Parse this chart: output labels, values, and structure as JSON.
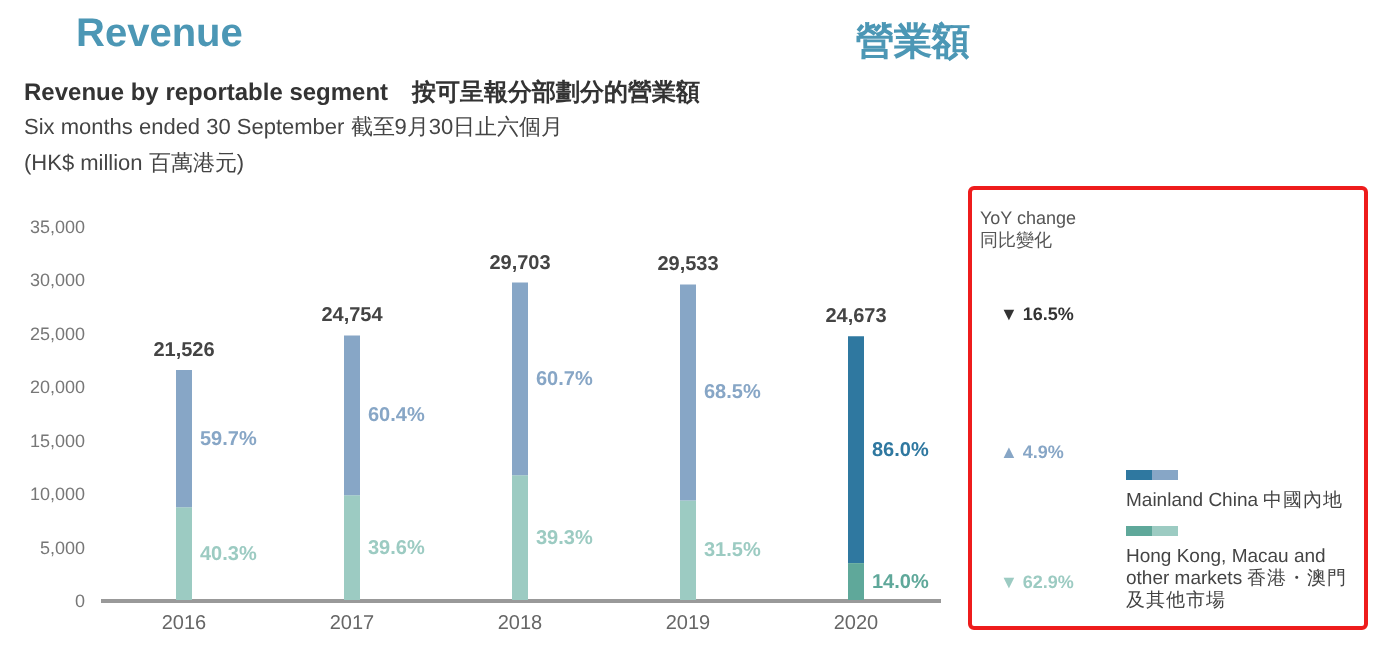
{
  "chart_data": {
    "type": "bar",
    "title": "Revenue",
    "subtitle": "Revenue by reportable segment　按可呈報分部劃分的營業額",
    "annotations": [
      "營業額",
      "Six months ended 30 September 截至9月30日止六個月",
      "(HK$ million 百萬港元)",
      "YoY change\n同比變化",
      "▼ 16.5%",
      "▲ 4.9%",
      "▼ 62.9%",
      {
        "text": "40.3%",
        "x": "2016",
        "y": 4340
      },
      {
        "text": "59.7%",
        "x": "2016",
        "y": 15100
      },
      {
        "text": "39.6%",
        "x": "2017",
        "y": 4900
      },
      {
        "text": "60.4%",
        "x": "2017",
        "y": 17280
      },
      {
        "text": "39.3%",
        "x": "2018",
        "y": 5840
      },
      {
        "text": "60.7%",
        "x": "2018",
        "y": 20690
      },
      {
        "text": "31.5%",
        "x": "2019",
        "y": 4650
      },
      {
        "text": "68.5%",
        "x": "2019",
        "y": 19420
      },
      {
        "text": "14.0%",
        "x": "2020",
        "y": 1730
      },
      {
        "text": "86.0%",
        "x": "2020",
        "y": 14060
      }
    ],
    "categories": [
      "2016",
      "2017",
      "2018",
      "2019",
      "2020"
    ],
    "stacked": true,
    "series": [
      {
        "name": "Hong Kong, Macau and other markets 香港・澳門及其他市場",
        "color": "#9ccbc2",
        "colors": [
          "#9ccbc2",
          "#9ccbc2",
          "#9ccbc2",
          "#9ccbc2",
          "#5fa89a"
        ],
        "values": [
          8675,
          9803,
          11673,
          9303,
          3454
        ]
      },
      {
        "name": "Mainland China 中國內地",
        "color": "#87a6c6",
        "colors": [
          "#87a6c6",
          "#87a6c6",
          "#87a6c6",
          "#87a6c6",
          "#2f78a0"
        ],
        "values": [
          12851,
          14951,
          18030,
          20230,
          21219
        ]
      }
    ],
    "totals": [
      "21,526",
      "24,754",
      "29,703",
      "29,533",
      "24,673"
    ],
    "ylim": [
      0,
      35000
    ],
    "yticks": [
      0,
      {
        "value": 5000,
        "label": "5,000"
      },
      {
        "value": 10000,
        "label": "10,000"
      },
      {
        "value": 15000,
        "label": "15,000"
      },
      {
        "value": 20000,
        "label": "20,000"
      },
      {
        "value": 25000,
        "label": "25,000"
      },
      {
        "value": 30000,
        "label": "30,000"
      },
      {
        "value": 35000,
        "label": "35,000"
      }
    ],
    "grid": false,
    "legend": "right"
  }
}
